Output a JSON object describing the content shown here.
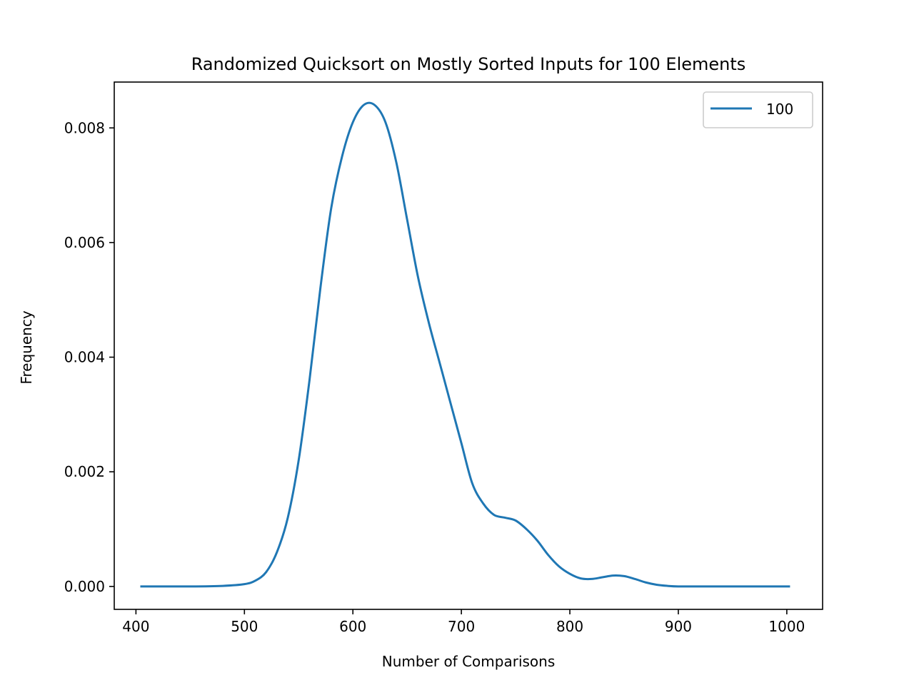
{
  "chart_data": {
    "type": "line",
    "title": "Randomized Quicksort on Mostly Sorted Inputs for 100 Elements",
    "xlabel": "Number of Comparisons",
    "ylabel": "Frequency",
    "xlim": [
      380,
      1033
    ],
    "ylim": [
      -0.0004,
      0.0088
    ],
    "xticks": [
      400,
      500,
      600,
      700,
      800,
      900,
      1000
    ],
    "xtick_labels": [
      "400",
      "500",
      "600",
      "700",
      "800",
      "900",
      "1000"
    ],
    "yticks": [
      0.0,
      0.002,
      0.004,
      0.006,
      0.008
    ],
    "ytick_labels": [
      "0.000",
      "0.002",
      "0.004",
      "0.006",
      "0.008"
    ],
    "grid": false,
    "legend_position": "top-right",
    "series": [
      {
        "name": "100",
        "color": "#1f77b4",
        "x": [
          405,
          450,
          480,
          500,
          510,
          520,
          530,
          540,
          550,
          560,
          570,
          580,
          590,
          600,
          610,
          620,
          630,
          640,
          650,
          660,
          670,
          680,
          690,
          700,
          710,
          720,
          730,
          740,
          750,
          760,
          770,
          780,
          790,
          800,
          810,
          820,
          830,
          840,
          850,
          860,
          870,
          880,
          890,
          900,
          920,
          950,
          1002
        ],
        "y": [
          0.0,
          0.0,
          1e-05,
          4e-05,
          0.0001,
          0.00025,
          0.0006,
          0.0012,
          0.0022,
          0.0036,
          0.0052,
          0.0066,
          0.0075,
          0.0081,
          0.0084,
          0.0084,
          0.0081,
          0.0074,
          0.0064,
          0.0054,
          0.0046,
          0.0039,
          0.0032,
          0.0025,
          0.0018,
          0.00145,
          0.00125,
          0.0012,
          0.00115,
          0.001,
          0.0008,
          0.00055,
          0.00035,
          0.00022,
          0.00014,
          0.00013,
          0.00016,
          0.00019,
          0.00018,
          0.00013,
          7e-05,
          3e-05,
          1e-05,
          0.0,
          0.0,
          0.0,
          0.0
        ]
      }
    ]
  }
}
